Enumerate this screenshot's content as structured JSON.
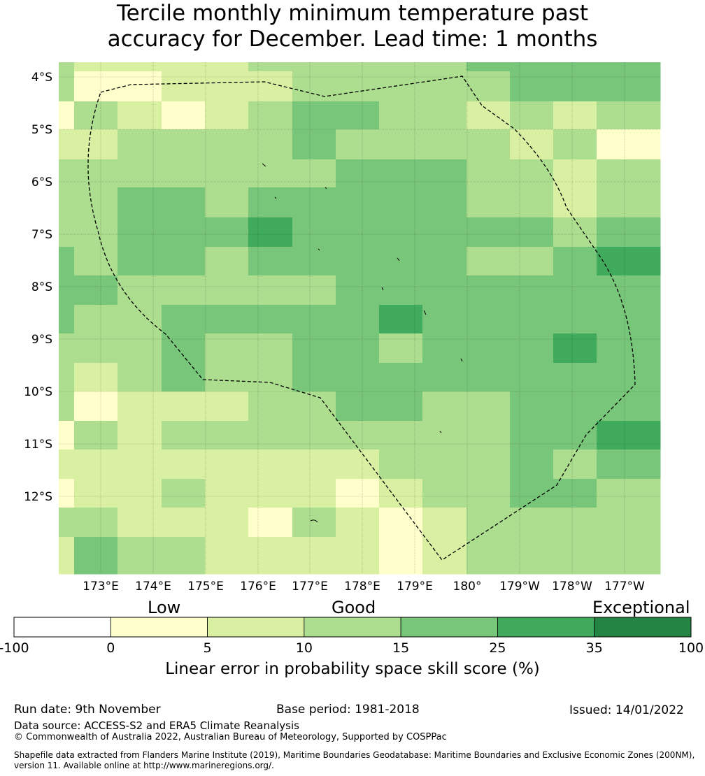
{
  "title": {
    "line1": "Tercile monthly minimum temperature past",
    "line2": "accuracy for December. Lead time: 1 months"
  },
  "map": {
    "lon_labels": [
      "173°E",
      "174°E",
      "175°E",
      "176°E",
      "177°E",
      "178°E",
      "179°E",
      "180°",
      "179°W",
      "178°W",
      "177°W"
    ],
    "lat_labels": [
      "4°S",
      "5°S",
      "6°S",
      "7°S",
      "8°S",
      "9°S",
      "10°S",
      "11°S",
      "12°S"
    ],
    "grid_columns_lon_start": 172.5,
    "grid_rows_lat_start": -3.7,
    "cell_deg": 0.83,
    "skill_category_grid": [
      [
        3,
        2,
        2,
        2,
        2,
        3,
        3,
        3,
        3,
        3,
        4,
        4,
        4,
        4
      ],
      [
        3,
        1,
        1,
        2,
        2,
        2,
        3,
        3,
        3,
        3,
        3,
        4,
        4,
        4
      ],
      [
        1,
        3,
        2,
        1,
        2,
        3,
        4,
        4,
        3,
        3,
        2,
        3,
        2,
        3
      ],
      [
        2,
        2,
        3,
        3,
        3,
        3,
        4,
        3,
        3,
        3,
        3,
        2,
        3,
        1
      ],
      [
        3,
        3,
        3,
        3,
        3,
        3,
        3,
        4,
        4,
        4,
        3,
        3,
        2,
        3
      ],
      [
        3,
        3,
        4,
        4,
        3,
        4,
        4,
        4,
        4,
        4,
        3,
        3,
        2,
        3
      ],
      [
        3,
        3,
        4,
        4,
        4,
        5,
        4,
        4,
        4,
        4,
        4,
        4,
        3,
        4
      ],
      [
        4,
        3,
        4,
        4,
        3,
        4,
        4,
        4,
        4,
        4,
        3,
        3,
        4,
        5
      ],
      [
        4,
        4,
        3,
        3,
        3,
        3,
        3,
        4,
        4,
        4,
        4,
        4,
        4,
        4
      ],
      [
        4,
        3,
        3,
        4,
        4,
        4,
        4,
        4,
        5,
        4,
        4,
        4,
        4,
        4
      ],
      [
        3,
        3,
        3,
        4,
        3,
        3,
        4,
        4,
        3,
        4,
        4,
        4,
        5,
        4
      ],
      [
        3,
        2,
        3,
        4,
        3,
        3,
        4,
        4,
        4,
        4,
        4,
        4,
        4,
        4
      ],
      [
        3,
        1,
        2,
        2,
        2,
        3,
        3,
        4,
        4,
        3,
        3,
        4,
        4,
        4
      ],
      [
        1,
        3,
        2,
        3,
        3,
        3,
        3,
        3,
        3,
        3,
        3,
        4,
        4,
        5
      ],
      [
        2,
        2,
        2,
        2,
        2,
        2,
        2,
        2,
        3,
        3,
        3,
        4,
        3,
        4
      ],
      [
        1,
        2,
        2,
        3,
        2,
        2,
        2,
        1,
        2,
        3,
        3,
        4,
        4,
        3
      ],
      [
        3,
        3,
        2,
        2,
        2,
        1,
        3,
        2,
        1,
        2,
        3,
        3,
        3,
        3
      ],
      [
        2,
        4,
        3,
        3,
        2,
        2,
        2,
        2,
        1,
        2,
        3,
        3,
        3,
        3
      ]
    ]
  },
  "legend": {
    "categories": [
      "Low",
      "Good",
      "Exceptional"
    ],
    "colors": [
      "#ffffff",
      "#ffffcc",
      "#d9f0a3",
      "#addd8e",
      "#78c679",
      "#41ab5d",
      "#238443"
    ],
    "ticks": [
      "-100",
      "0",
      "5",
      "10",
      "15",
      "25",
      "35",
      "100"
    ],
    "label": "Linear error in probability space skill score (%)"
  },
  "footer": {
    "run_date": "Run date: 9th November",
    "base_period": "Base period: 1981-2018",
    "issued": "Issued: 14/01/2022",
    "data_source": "Data source: ACCESS-S2 and ERA5 Climate Reanalysis",
    "copyright": "© Commonwealth of Australia 2022, Australian Bureau of Meteorology, Supported by COSPPac",
    "shapefile_line1": "Shapefile data extracted from Flanders Marine Institute (2019), Maritime Boundaries Geodatabase: Maritime Boundaries and Exclusive Economic Zones (200NM),",
    "shapefile_line2": "version 11. Available online at http://www.marineregions.org/."
  }
}
